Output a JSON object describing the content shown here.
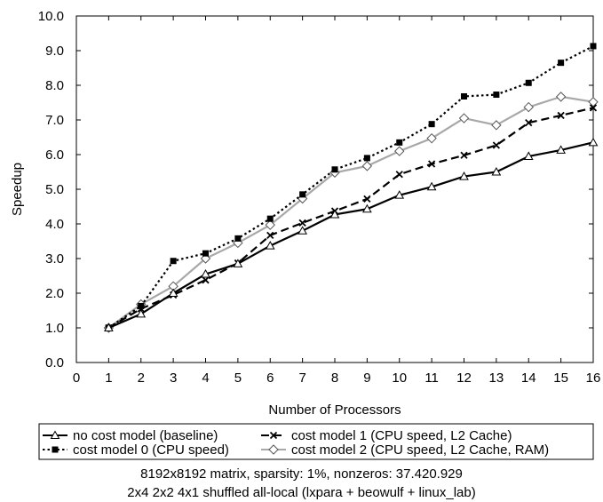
{
  "chart_data": {
    "type": "line",
    "title": "",
    "xlabel": "Number of Processors",
    "ylabel": "Speedup",
    "xlim": [
      0,
      16
    ],
    "ylim": [
      0,
      10
    ],
    "x_ticks": [
      "0",
      "1",
      "2",
      "3",
      "4",
      "5",
      "6",
      "7",
      "8",
      "9",
      "10",
      "11",
      "12",
      "13",
      "14",
      "15",
      "16"
    ],
    "y_ticks": [
      "0.0",
      "1.0",
      "2.0",
      "3.0",
      "4.0",
      "5.0",
      "6.0",
      "7.0",
      "8.0",
      "9.0",
      "10.0"
    ],
    "grid": false,
    "legend_position": "bottom",
    "x": [
      1,
      2,
      3,
      4,
      5,
      6,
      7,
      8,
      9,
      10,
      11,
      12,
      13,
      14,
      15,
      16
    ],
    "series": [
      {
        "name": "no cost model (baseline)",
        "color": "#000000",
        "dash": "solid",
        "marker": "triangle",
        "values": [
          1.0,
          1.4,
          2.0,
          2.55,
          2.85,
          3.37,
          3.8,
          4.27,
          4.43,
          4.83,
          5.07,
          5.37,
          5.5,
          5.95,
          6.13,
          6.35
        ]
      },
      {
        "name": "cost model 0 (CPU speed)",
        "color": "#000000",
        "dash": "dotted",
        "marker": "square",
        "values": [
          1.0,
          1.63,
          2.93,
          3.15,
          3.58,
          4.15,
          4.85,
          5.57,
          5.9,
          6.35,
          6.88,
          7.68,
          7.73,
          8.07,
          8.65,
          9.13
        ]
      },
      {
        "name": "cost model 1 (CPU speed, L2 Cache)",
        "color": "#000000",
        "dash": "dashed",
        "marker": "cross",
        "values": [
          1.0,
          1.55,
          1.95,
          2.38,
          2.87,
          3.67,
          4.03,
          4.37,
          4.72,
          5.43,
          5.73,
          5.98,
          6.27,
          6.92,
          7.13,
          7.35
        ]
      },
      {
        "name": "cost model 2 (CPU speed, L2 Cache, RAM)",
        "color": "#a8a8a8",
        "dash": "solid",
        "marker": "diamond",
        "values": [
          1.0,
          1.68,
          2.2,
          3.0,
          3.45,
          3.97,
          4.73,
          5.48,
          5.67,
          6.1,
          6.47,
          7.05,
          6.85,
          7.37,
          7.67,
          7.52
        ]
      }
    ]
  },
  "captions": {
    "line1": "8192x8192 matrix, sparsity: 1%, nonzeros: 37.420.929",
    "line2": "2x4 2x2 4x1 shuffled all-local (lxpara + beowulf + linux_lab)"
  }
}
